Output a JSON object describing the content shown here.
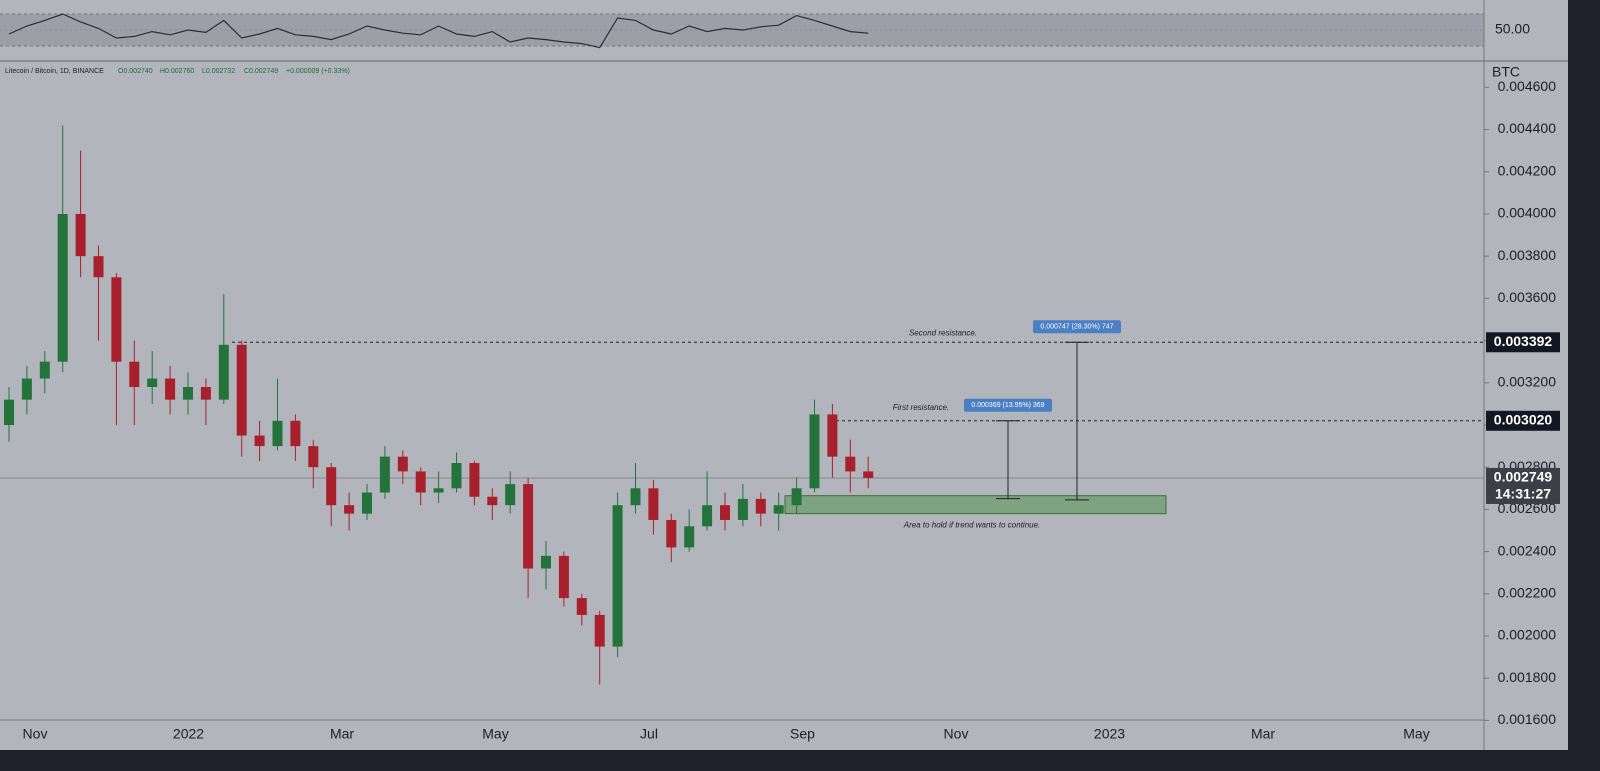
{
  "chart_data": {
    "type": "candlestick",
    "title": "Litecoin / Bitcoin, 1D, BINANCE",
    "ohlc_legend": [
      "O0.002740",
      "H0.002760",
      "L0.002732",
      "C0.002749",
      "+0.000009 (+0.33%)"
    ],
    "y_unit": "BTC",
    "up_color": "#24733a",
    "down_color": "#a8202c",
    "open": [
      0.003,
      0.00312,
      0.00322,
      0.0033,
      0.004,
      0.0038,
      0.0037,
      0.0033,
      0.00318,
      0.00322,
      0.00312,
      0.00318,
      0.00312,
      0.00338,
      0.00295,
      0.0029,
      0.00302,
      0.0029,
      0.0028,
      0.00262,
      0.00258,
      0.00268,
      0.00285,
      0.00278,
      0.00268,
      0.0027,
      0.00282,
      0.00266,
      0.00262,
      0.00272,
      0.00232,
      0.00238,
      0.00218,
      0.0021,
      0.00195,
      0.00262,
      0.0027,
      0.00255,
      0.00242,
      0.00252,
      0.00262,
      0.00255,
      0.00265,
      0.00258,
      0.00262,
      0.0027,
      0.00305,
      0.00285,
      0.00278
    ],
    "high": [
      0.00318,
      0.00328,
      0.00335,
      0.00442,
      0.0043,
      0.00385,
      0.00372,
      0.0034,
      0.00335,
      0.00328,
      0.00325,
      0.00322,
      0.00362,
      0.0034,
      0.00302,
      0.00322,
      0.00305,
      0.00293,
      0.00282,
      0.00268,
      0.00272,
      0.0029,
      0.00288,
      0.0028,
      0.00278,
      0.00287,
      0.00283,
      0.0027,
      0.00278,
      0.00275,
      0.00245,
      0.0024,
      0.0022,
      0.00212,
      0.00268,
      0.00282,
      0.00274,
      0.00258,
      0.0026,
      0.00278,
      0.00268,
      0.00272,
      0.00268,
      0.00268,
      0.00275,
      0.00312,
      0.0031,
      0.00293,
      0.00285
    ],
    "low": [
      0.00292,
      0.00305,
      0.00315,
      0.00325,
      0.0037,
      0.0034,
      0.003,
      0.003,
      0.0031,
      0.00305,
      0.00305,
      0.003,
      0.0031,
      0.00285,
      0.00283,
      0.00288,
      0.00283,
      0.0027,
      0.00252,
      0.0025,
      0.00255,
      0.00265,
      0.00272,
      0.00262,
      0.00263,
      0.00268,
      0.00262,
      0.00255,
      0.00258,
      0.00218,
      0.00222,
      0.00214,
      0.00205,
      0.00177,
      0.0019,
      0.00258,
      0.00248,
      0.00235,
      0.0024,
      0.0025,
      0.0025,
      0.00252,
      0.00252,
      0.0025,
      0.00258,
      0.00268,
      0.00275,
      0.00268,
      0.0027
    ],
    "close": [
      0.00312,
      0.00322,
      0.0033,
      0.004,
      0.0038,
      0.0037,
      0.0033,
      0.00318,
      0.00322,
      0.00312,
      0.00318,
      0.00312,
      0.00338,
      0.00295,
      0.0029,
      0.00302,
      0.0029,
      0.0028,
      0.00262,
      0.00258,
      0.00268,
      0.00285,
      0.00278,
      0.00268,
      0.0027,
      0.00282,
      0.00266,
      0.00262,
      0.00272,
      0.00232,
      0.00238,
      0.00218,
      0.0021,
      0.00195,
      0.00262,
      0.0027,
      0.00255,
      0.00242,
      0.00252,
      0.00262,
      0.00255,
      0.00265,
      0.00258,
      0.00262,
      0.0027,
      0.00305,
      0.00285,
      0.00278,
      0.002749
    ],
    "ylim": [
      0.00146,
      0.00472
    ],
    "yticks": [
      {
        "value": 0.0016,
        "label": "0.001600"
      },
      {
        "value": 0.0018,
        "label": "0.001800"
      },
      {
        "value": 0.002,
        "label": "0.002000"
      },
      {
        "value": 0.0022,
        "label": "0.002200"
      },
      {
        "value": 0.0024,
        "label": "0.002400"
      },
      {
        "value": 0.0026,
        "label": "0.002600"
      },
      {
        "value": 0.0028,
        "label": "0.002800"
      },
      {
        "value": 0.003,
        "label": "0.003000"
      },
      {
        "value": 0.0032,
        "label": "0.003200"
      },
      {
        "value": 0.0034,
        "label": "0.003400"
      },
      {
        "value": 0.0036,
        "label": "0.003600"
      },
      {
        "value": 0.0038,
        "label": "0.003800"
      },
      {
        "value": 0.004,
        "label": "0.004000"
      },
      {
        "value": 0.0042,
        "label": "0.004200"
      },
      {
        "value": 0.0044,
        "label": "0.004400"
      },
      {
        "value": 0.0046,
        "label": "0.004600"
      }
    ],
    "x_labels": [
      "Nov",
      "2022",
      "Mar",
      "May",
      "Jul",
      "Sep",
      "Nov",
      "2023",
      "Mar",
      "May"
    ],
    "price_lines": [
      {
        "value": 0.003392,
        "label": "0.003392"
      },
      {
        "value": 0.00302,
        "label": "0.003020"
      }
    ],
    "current_price": {
      "value": 0.002749,
      "label": "0.002749",
      "countdown": "14:31:27"
    },
    "zone": {
      "low": 0.00258,
      "high": 0.002665,
      "color": "#6f9f72",
      "label": "Area to hold if trend wants to continue."
    },
    "measurements": [
      {
        "from": 0.002651,
        "to": 0.00302,
        "label": "0.000369 (13.95%) 369"
      },
      {
        "from": 0.002645,
        "to": 0.003392,
        "label": "0.000747 (28.30%) 747"
      }
    ],
    "annotations": [
      "Second resistance.",
      "First resistance."
    ],
    "rsi": {
      "ylim": [
        30,
        70
      ],
      "yticks": [
        {
          "value": 50,
          "label": "50.00"
        }
      ],
      "values": [
        45,
        55,
        62,
        70,
        60,
        52,
        40,
        42,
        48,
        44,
        50,
        47,
        62,
        40,
        45,
        52,
        44,
        42,
        38,
        45,
        55,
        50,
        46,
        44,
        55,
        45,
        42,
        48,
        35,
        40,
        38,
        35,
        33,
        28,
        65,
        62,
        50,
        45,
        55,
        48,
        52,
        50,
        54,
        56,
        68,
        62,
        55,
        48,
        46
      ]
    }
  }
}
